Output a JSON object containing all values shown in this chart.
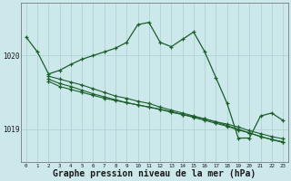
{
  "background_color": "#cce8ea",
  "grid_color": "#aacfd2",
  "line_color": "#1a5e2a",
  "xlabel": "Graphe pression niveau de la mer (hPa)",
  "xlabel_fontsize": 7,
  "ylabel_ticks": [
    1019,
    1020
  ],
  "xlim": [
    -0.5,
    23.5
  ],
  "ylim": [
    1018.55,
    1020.72
  ],
  "xticks": [
    0,
    1,
    2,
    3,
    4,
    5,
    6,
    7,
    8,
    9,
    10,
    11,
    12,
    13,
    14,
    15,
    16,
    17,
    18,
    19,
    20,
    21,
    22,
    23
  ],
  "series_main": {
    "x": [
      0,
      1,
      2,
      3,
      4,
      5,
      6,
      7,
      8,
      9,
      10,
      11,
      12,
      13,
      14,
      15,
      16,
      17,
      18,
      19,
      20,
      21,
      22,
      23
    ],
    "y": [
      1020.25,
      1020.05,
      1019.75,
      1019.8,
      1019.88,
      1019.95,
      1020.0,
      1020.05,
      1020.1,
      1020.18,
      1020.42,
      1020.45,
      1020.18,
      1020.12,
      1020.22,
      1020.32,
      1020.05,
      1019.7,
      1019.35,
      1018.88,
      1018.88,
      1019.18,
      1019.22,
      1019.12
    ]
  },
  "series2": {
    "x": [
      2,
      3,
      4,
      5,
      6,
      7,
      8,
      9,
      10,
      11,
      12,
      13,
      14,
      15,
      16,
      17,
      18,
      19,
      20,
      21,
      22,
      23
    ],
    "y": [
      1019.72,
      1019.68,
      1019.64,
      1019.6,
      1019.55,
      1019.5,
      1019.45,
      1019.42,
      1019.38,
      1019.35,
      1019.3,
      1019.26,
      1019.22,
      1019.18,
      1019.14,
      1019.1,
      1019.05,
      1019.0,
      1018.95,
      1018.9,
      1018.86,
      1018.83
    ]
  },
  "series3": {
    "x": [
      2,
      3,
      4,
      5,
      6,
      7,
      8,
      9,
      10,
      11,
      12,
      13,
      14,
      15,
      16,
      17,
      18,
      19,
      20,
      21,
      22,
      23
    ],
    "y": [
      1019.68,
      1019.62,
      1019.58,
      1019.53,
      1019.48,
      1019.44,
      1019.4,
      1019.36,
      1019.33,
      1019.3,
      1019.27,
      1019.23,
      1019.2,
      1019.16,
      1019.12,
      1019.08,
      1019.04,
      1018.99,
      1018.95,
      1018.9,
      1018.86,
      1018.82
    ]
  },
  "series4": {
    "x": [
      2,
      3,
      4,
      5,
      6,
      7,
      8,
      9,
      10,
      11,
      12,
      13,
      14,
      15,
      16,
      17,
      18,
      19,
      20,
      21,
      22,
      23
    ],
    "y": [
      1019.65,
      1019.58,
      1019.54,
      1019.5,
      1019.46,
      1019.42,
      1019.39,
      1019.36,
      1019.33,
      1019.3,
      1019.27,
      1019.24,
      1019.2,
      1019.17,
      1019.14,
      1019.1,
      1019.07,
      1019.03,
      1018.98,
      1018.94,
      1018.9,
      1018.87
    ]
  }
}
